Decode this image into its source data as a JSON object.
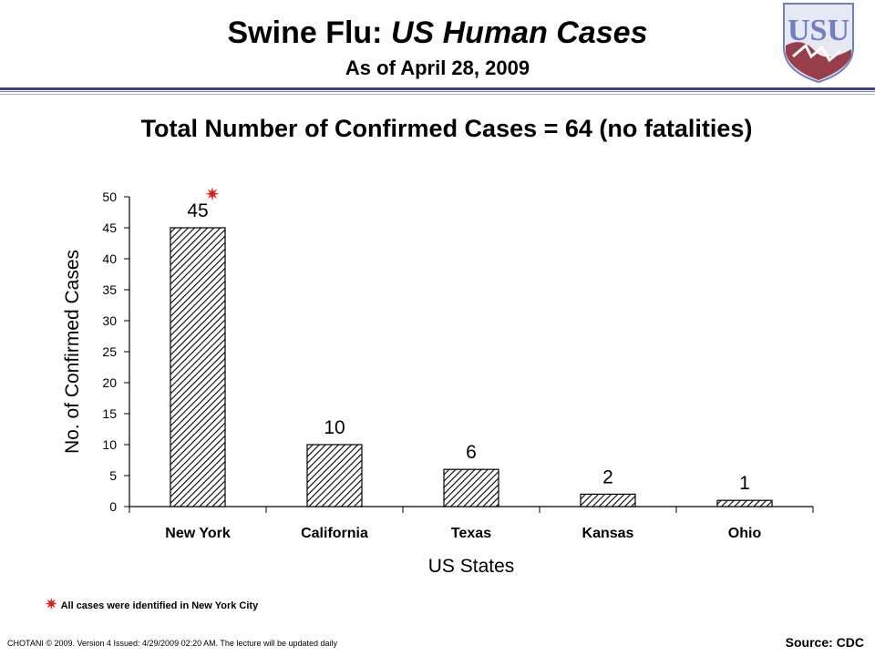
{
  "header": {
    "title_prefix": "Swine Flu: ",
    "title_italic": "US Human Cases",
    "subtitle": "As of April 28, 2009",
    "logo_letters": "USU"
  },
  "total_line": "Total Number of Confirmed Cases = 64 (no fatalities)",
  "chart_data": {
    "type": "bar",
    "categories": [
      "New York",
      "California",
      "Texas",
      "Kansas",
      "Ohio"
    ],
    "values": [
      45,
      10,
      6,
      2,
      1
    ],
    "data_labels": [
      "45",
      "10",
      "6",
      "2",
      "1"
    ],
    "xlabel": "US States",
    "ylabel": "No. of Confirmed Cases",
    "ylim": [
      0,
      50
    ],
    "yticks": [
      0,
      5,
      10,
      15,
      20,
      25,
      30,
      35,
      40,
      45,
      50
    ],
    "bar_fill": "diagonal-hatch",
    "annotation": {
      "category": "New York",
      "symbol": "✷",
      "color": "#e0201c"
    },
    "grid": false,
    "legend": "none"
  },
  "footnote": {
    "symbol": "✷",
    "text": "All cases were identified in New York City",
    "color": "#e0201c"
  },
  "footer": {
    "copyright": "CHOTANI © 2009. Version 4 Issued: 4/29/2009 02:20 AM. The lecture will be updated daily",
    "source": "Source: CDC"
  },
  "colors": {
    "rule": "#3b3f8c",
    "logo_blue": "#6f7fbf",
    "logo_red": "#8a1f2b",
    "star": "#e0201c"
  }
}
